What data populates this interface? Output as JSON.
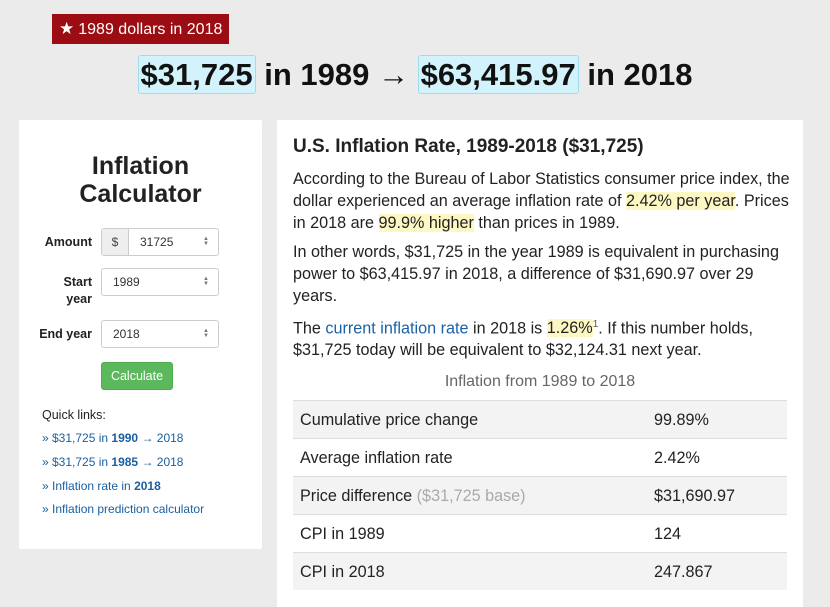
{
  "badge": {
    "label": "1989 dollars in 2018"
  },
  "headline": {
    "amount_from": "$31,725",
    "in_from": "in 1989",
    "arrow": "→",
    "amount_to": "$63,415.97",
    "in_to": "in 2018"
  },
  "calculator": {
    "title_line1": "Inflation",
    "title_line2": "Calculator",
    "amount_label": "Amount",
    "currency_addon": "$",
    "amount_value": "31725",
    "start_label_line1": "Start",
    "start_label_line2": "year",
    "start_value": "1989",
    "end_label": "End year",
    "end_value": "2018",
    "button": "Calculate",
    "quick_links_label": "Quick links:",
    "quick_links": [
      {
        "pre": "» $31,725 in ",
        "bold": "1990",
        "post": " → 2018"
      },
      {
        "pre": "» $31,725 in ",
        "bold": "1985",
        "post": " → 2018"
      },
      {
        "pre": "» Inflation rate in ",
        "bold": "2018",
        "post": ""
      },
      {
        "pre": "» Inflation prediction calculator",
        "bold": "",
        "post": ""
      }
    ]
  },
  "article": {
    "title": "U.S. Inflation Rate, 1989-2018 ($31,725)",
    "p1_a": "According to the Bureau of Labor Statistics consumer price index, the dollar experienced an average inflation rate of ",
    "p1_hl1": "2.42% per year",
    "p1_b": ". Prices in 2018 are ",
    "p1_hl2": "99.9% higher",
    "p1_c": " than prices in 1989.",
    "p2": "In other words, $31,725 in the year 1989 is equivalent in purchasing power to $63,415.97 in 2018, a difference of $31,690.97 over 29 years.",
    "p3_a": "The ",
    "p3_link": "current inflation rate",
    "p3_b": " in 2018 is ",
    "p3_hl": "1.26%",
    "p3_sup": "1",
    "p3_c": ". If this number holds, $31,725 today will be equivalent to $32,124.31 next year.",
    "table_caption": "Inflation from 1989 to 2018",
    "table": [
      {
        "label": "Cumulative price change",
        "note": "",
        "value": "99.89%"
      },
      {
        "label": "Average inflation rate",
        "note": "",
        "value": "2.42%"
      },
      {
        "label": "Price difference ",
        "note": "($31,725 base)",
        "value": "$31,690.97"
      },
      {
        "label": "CPI in 1989",
        "note": "",
        "value": "124"
      },
      {
        "label": "CPI in 2018",
        "note": "",
        "value": "247.867"
      }
    ]
  }
}
